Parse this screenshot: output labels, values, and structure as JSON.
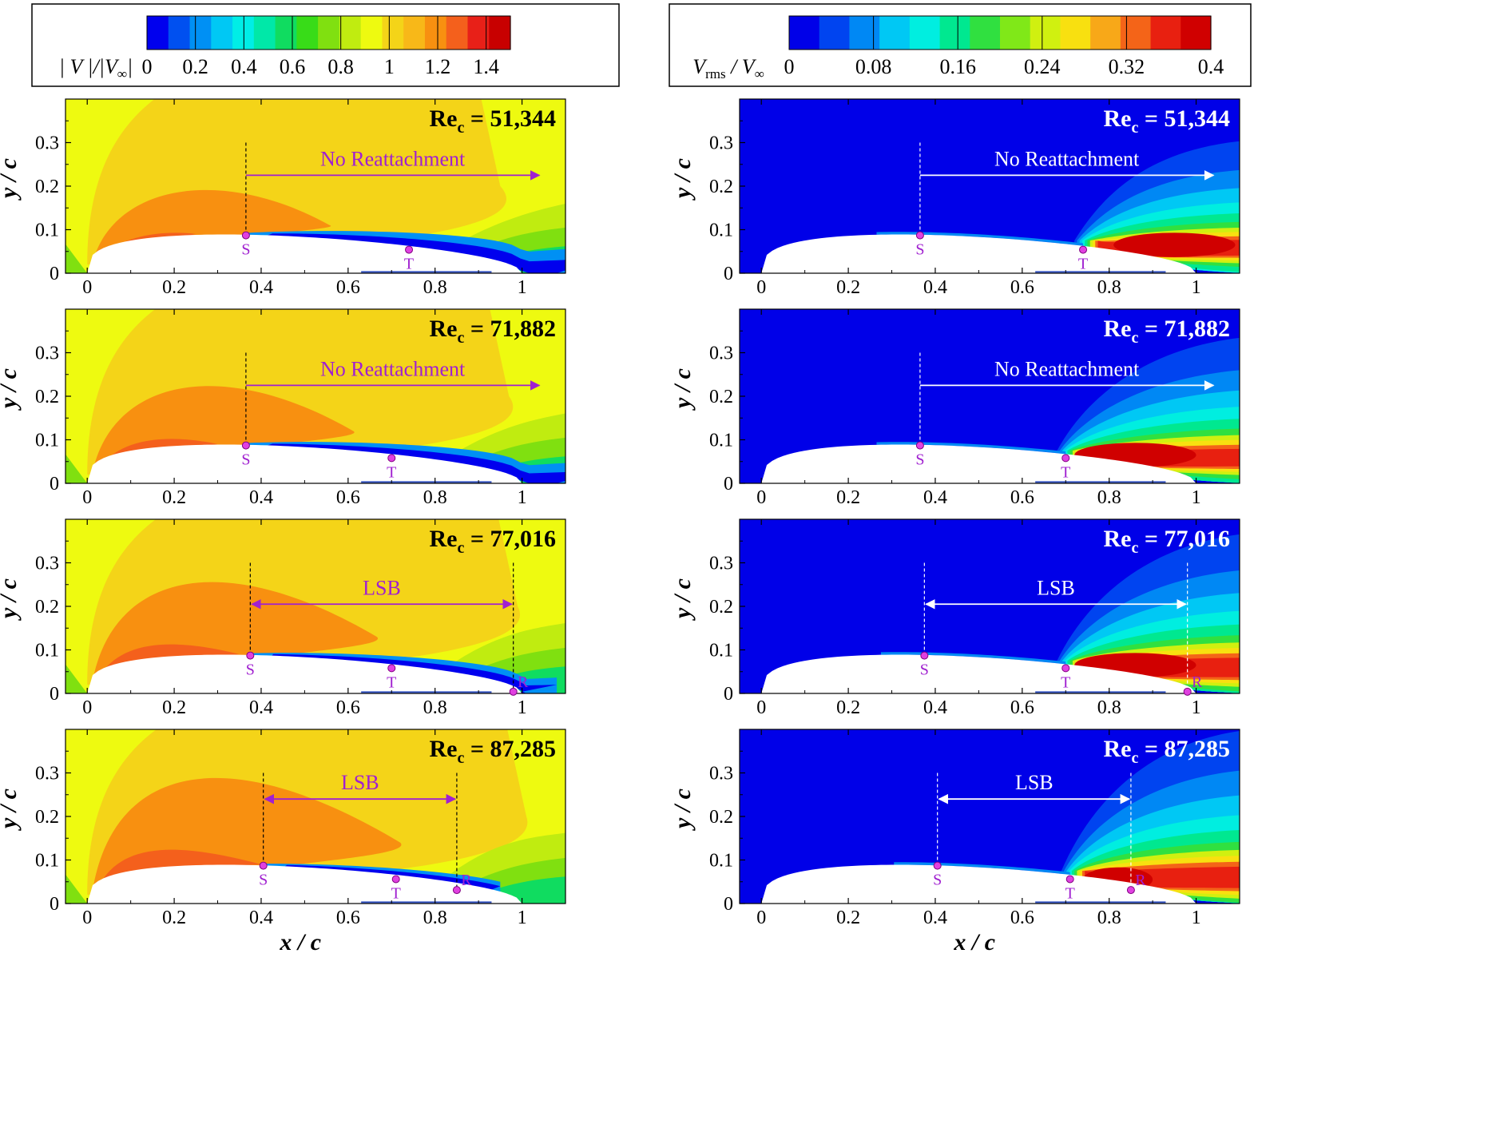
{
  "colors": {
    "velocity_scale": [
      "#0000ee",
      "#0050f0",
      "#0090f4",
      "#00c8f4",
      "#00eee6",
      "#00e8a8",
      "#10dc60",
      "#38dc18",
      "#80e010",
      "#c0ec10",
      "#eefa10",
      "#f4d418",
      "#f8b818",
      "#f89010",
      "#f4601c",
      "#e82018",
      "#c80000"
    ],
    "rms_scale": [
      "#0000e8",
      "#0044f0",
      "#0088f4",
      "#00c8f4",
      "#00eee0",
      "#00e890",
      "#30e040",
      "#80e818",
      "#d0f010",
      "#f8e010",
      "#f8a818",
      "#f46418",
      "#e82010",
      "#d00000"
    ],
    "left_annotation": "#a020d0",
    "right_annotation": "#ffffff",
    "marker": "#e040e0"
  },
  "colorbars": [
    {
      "label_main": "| V |/|V",
      "label_sub": "∞",
      "label_close": "|",
      "ticks": [
        "0",
        "0.2",
        "0.4",
        "0.6",
        "0.8",
        "1",
        "1.2",
        "1.4"
      ],
      "range": [
        0,
        1.5
      ]
    },
    {
      "label_main": "V",
      "label_sub": "rms",
      "label_mid": " / V",
      "label_sub2": "∞",
      "ticks": [
        "0",
        "0.08",
        "0.16",
        "0.24",
        "0.32",
        "0.4"
      ],
      "range": [
        0,
        0.4
      ]
    }
  ],
  "chart_data": {
    "type": "heatmap",
    "description_fields": "contour plots of normalized velocity magnitude (left) and rms velocity (right) over an airfoil suction side",
    "x_axis": {
      "label": "x / c",
      "range": [
        -0.05,
        1.1
      ],
      "ticks": [
        "0",
        "0.2",
        "0.4",
        "0.6",
        "0.8",
        "1"
      ],
      "tick_values": [
        0,
        0.2,
        0.4,
        0.6,
        0.8,
        1
      ]
    },
    "y_axis": {
      "label": "y / c",
      "range": [
        0,
        0.4
      ],
      "ticks": [
        "0",
        "0.1",
        "0.2",
        "0.3"
      ],
      "tick_values": [
        0,
        0.1,
        0.2,
        0.3
      ]
    },
    "cases": [
      {
        "re_label": "Re",
        "re_sub": "c",
        "re_value": " = 51,344",
        "annotation": "No Reattachment",
        "S": {
          "x": 0.365,
          "y": 0.087,
          "label": "S"
        },
        "T": {
          "x": 0.74,
          "y": 0.054,
          "label": "T"
        },
        "R": null,
        "arrow_end": 1.04
      },
      {
        "re_label": "Re",
        "re_sub": "c",
        "re_value": " = 71,882",
        "annotation": "No Reattachment",
        "S": {
          "x": 0.365,
          "y": 0.087,
          "label": "S"
        },
        "T": {
          "x": 0.7,
          "y": 0.058,
          "label": "T"
        },
        "R": null,
        "arrow_end": 1.04
      },
      {
        "re_label": "Re",
        "re_sub": "c",
        "re_value": " = 77,016",
        "annotation": "LSB",
        "S": {
          "x": 0.375,
          "y": 0.087,
          "label": "S"
        },
        "T": {
          "x": 0.7,
          "y": 0.058,
          "label": "T"
        },
        "R": {
          "x": 0.98,
          "y": 0.004,
          "label": "R"
        },
        "arrow_end": 0.98
      },
      {
        "re_label": "Re",
        "re_sub": "c",
        "re_value": " = 87,285",
        "annotation": "LSB",
        "S": {
          "x": 0.405,
          "y": 0.087,
          "label": "S"
        },
        "T": {
          "x": 0.71,
          "y": 0.056,
          "label": "T"
        },
        "R": {
          "x": 0.85,
          "y": 0.031,
          "label": "R"
        },
        "arrow_end": 0.85
      }
    ]
  }
}
